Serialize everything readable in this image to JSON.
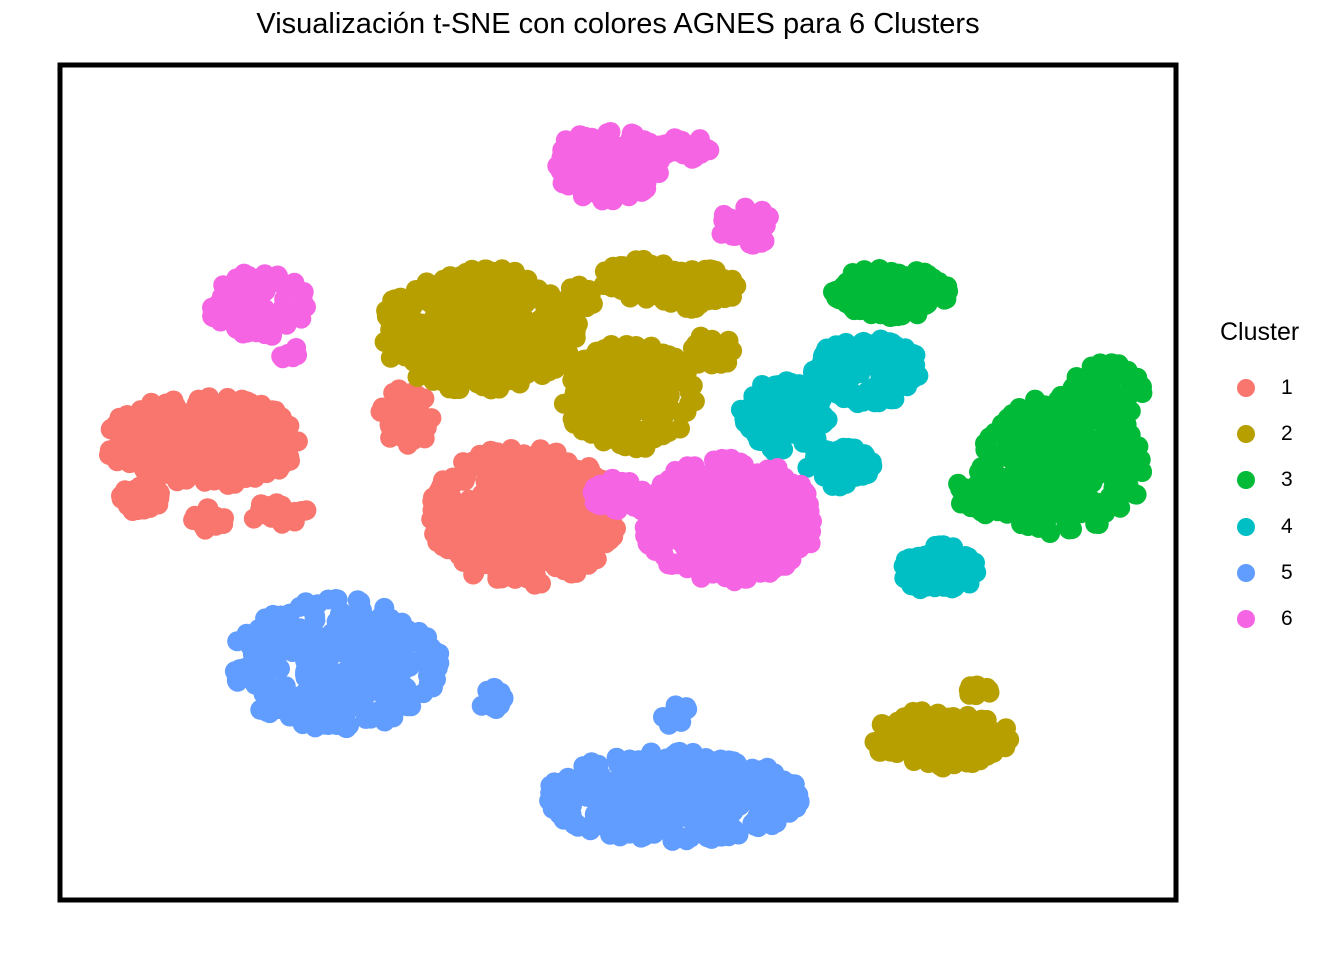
{
  "chart_data": {
    "type": "scatter",
    "title": "Visualización t-SNE con colores AGNES para 6 Clusters",
    "xlabel": "",
    "ylabel": "",
    "xlim": [
      0,
      100
    ],
    "ylim": [
      0,
      100
    ],
    "grid": false,
    "legend_position": "right",
    "legend_title": "Cluster",
    "series": [
      {
        "name": "1",
        "color": "#F8766D",
        "blobs": [
          {
            "center": [
              12.5,
              55.0
            ],
            "radius": [
              9.0,
              5.5
            ],
            "n": 260
          },
          {
            "center": [
              7.0,
              48.0
            ],
            "radius": [
              2.0,
              2.0
            ],
            "n": 30
          },
          {
            "center": [
              13.0,
              45.5
            ],
            "radius": [
              1.5,
              1.5
            ],
            "n": 18
          },
          {
            "center": [
              19.5,
              46.5
            ],
            "radius": [
              3.0,
              1.5
            ],
            "n": 30
          },
          {
            "center": [
              31.0,
              58.0
            ],
            "radius": [
              2.5,
              3.5
            ],
            "n": 45
          },
          {
            "center": [
              41.5,
              46.0
            ],
            "radius": [
              8.5,
              8.5
            ],
            "n": 420
          }
        ]
      },
      {
        "name": "2",
        "color": "#B79F00",
        "blobs": [
          {
            "center": [
              37.5,
              68.5
            ],
            "radius": [
              9.0,
              7.5
            ],
            "n": 360
          },
          {
            "center": [
              51.0,
              60.5
            ],
            "radius": [
              6.0,
              6.5
            ],
            "n": 220
          },
          {
            "center": [
              52.0,
              74.5
            ],
            "radius": [
              3.5,
              2.5
            ],
            "n": 60
          },
          {
            "center": [
              57.0,
              73.5
            ],
            "radius": [
              4.0,
              2.5
            ],
            "n": 70
          },
          {
            "center": [
              58.5,
              66.0
            ],
            "radius": [
              2.5,
              2.0
            ],
            "n": 30
          },
          {
            "center": [
              46.0,
              72.0
            ],
            "radius": [
              2.0,
              2.0
            ],
            "n": 25
          },
          {
            "center": [
              79.0,
              19.0
            ],
            "radius": [
              6.5,
              3.5
            ],
            "n": 150
          },
          {
            "center": [
              82.0,
              25.0
            ],
            "radius": [
              1.8,
              0.8
            ],
            "n": 15
          }
        ]
      },
      {
        "name": "3",
        "color": "#00BA38",
        "blobs": [
          {
            "center": [
              74.5,
              73.0
            ],
            "radius": [
              5.5,
              3.0
            ],
            "n": 130
          },
          {
            "center": [
              90.0,
              52.0
            ],
            "radius": [
              7.5,
              8.5
            ],
            "n": 260
          },
          {
            "center": [
              84.0,
              48.5
            ],
            "radius": [
              4.0,
              2.5
            ],
            "n": 60
          },
          {
            "center": [
              94.0,
              61.0
            ],
            "radius": [
              3.5,
              3.5
            ],
            "n": 60
          }
        ]
      },
      {
        "name": "4",
        "color": "#00BFC4",
        "blobs": [
          {
            "center": [
              72.5,
              63.5
            ],
            "radius": [
              5.0,
              4.0
            ],
            "n": 160
          },
          {
            "center": [
              65.0,
              58.0
            ],
            "radius": [
              4.0,
              4.5
            ],
            "n": 110
          },
          {
            "center": [
              70.0,
              52.0
            ],
            "radius": [
              3.0,
              2.5
            ],
            "n": 45
          },
          {
            "center": [
              79.0,
              39.5
            ],
            "radius": [
              3.5,
              3.0
            ],
            "n": 90
          }
        ]
      },
      {
        "name": "5",
        "color": "#619CFF",
        "blobs": [
          {
            "center": [
              24.5,
              28.0
            ],
            "radius": [
              9.5,
              8.0
            ],
            "n": 320
          },
          {
            "center": [
              38.5,
              24.0
            ],
            "radius": [
              1.5,
              1.5
            ],
            "n": 15
          },
          {
            "center": [
              55.0,
              12.0
            ],
            "radius": [
              11.5,
              5.5
            ],
            "n": 360
          },
          {
            "center": [
              55.0,
              22.0
            ],
            "radius": [
              1.5,
              1.5
            ],
            "n": 12
          }
        ]
      },
      {
        "name": "6",
        "color": "#F564E3",
        "blobs": [
          {
            "center": [
              49.0,
              88.5
            ],
            "radius": [
              5.0,
              4.5
            ],
            "n": 130
          },
          {
            "center": [
              56.0,
              90.5
            ],
            "radius": [
              2.5,
              1.5
            ],
            "n": 30
          },
          {
            "center": [
              61.5,
              81.0
            ],
            "radius": [
              2.5,
              2.5
            ],
            "n": 35
          },
          {
            "center": [
              17.5,
              71.5
            ],
            "radius": [
              4.5,
              4.0
            ],
            "n": 90
          },
          {
            "center": [
              20.5,
              65.5
            ],
            "radius": [
              1.0,
              1.0
            ],
            "n": 6
          },
          {
            "center": [
              60.0,
              45.5
            ],
            "radius": [
              8.0,
              7.5
            ],
            "n": 380
          },
          {
            "center": [
              50.0,
              48.5
            ],
            "radius": [
              2.5,
              2.0
            ],
            "n": 30
          }
        ]
      }
    ]
  }
}
